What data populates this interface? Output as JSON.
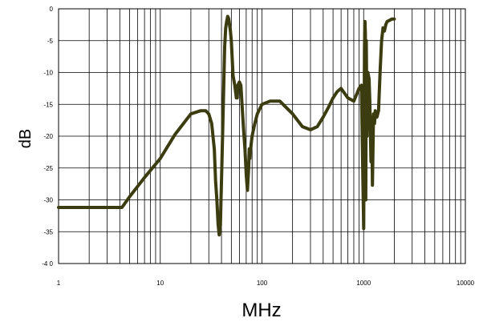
{
  "chart_data": {
    "type": "line",
    "title": "",
    "xlabel": "MHz",
    "ylabel": "dB",
    "xscale": "log",
    "xlim": [
      1,
      10000
    ],
    "ylim": [
      -40,
      0
    ],
    "grid": true,
    "legend": "none",
    "x_ticks": [
      1,
      10,
      100,
      1000,
      10000
    ],
    "x_tick_labels": [
      "1",
      "10",
      "100",
      "1000",
      "10000"
    ],
    "y_ticks": [
      0,
      -5,
      -10,
      -15,
      -20,
      -25,
      -30,
      -35,
      -40
    ],
    "y_tick_labels": [
      "0",
      "-5",
      "-10",
      "-15",
      "-20",
      "-25",
      "-30",
      "-35",
      "-4 0"
    ],
    "line_color": "#3b3c10",
    "series": [
      {
        "x": [
          1,
          4.2,
          5,
          7,
          10,
          14,
          20,
          25,
          28,
          30,
          32,
          34,
          35,
          36,
          37,
          38,
          39,
          41,
          43,
          44,
          45,
          46,
          47,
          48,
          49,
          50,
          52,
          54,
          56,
          57,
          58,
          60,
          62,
          64,
          66,
          68,
          70,
          72,
          74,
          75,
          76,
          78,
          80,
          85,
          90,
          100,
          120,
          150,
          200,
          250,
          300,
          350,
          400,
          450,
          500,
          550,
          600,
          700,
          800,
          900,
          950,
          1000,
          1020,
          1030,
          1040,
          1050,
          1060,
          1080,
          1100,
          1130,
          1150,
          1180,
          1200,
          1220,
          1250,
          1280,
          1300,
          1350,
          1400,
          1450,
          1500,
          1550,
          1600,
          1650,
          1700,
          1800,
          1900,
          2000
        ],
        "y": [
          -31.2,
          -31.2,
          -29.5,
          -26.5,
          -23.5,
          -19.7,
          -16.5,
          -16,
          -16,
          -16.5,
          -18,
          -22,
          -27,
          -30,
          -33.8,
          -35.5,
          -34,
          -20,
          -6,
          -3,
          -2,
          -1.2,
          -1.5,
          -2.5,
          -3.5,
          -5,
          -10.5,
          -12,
          -14,
          -14,
          -12,
          -11.5,
          -12,
          -15.5,
          -19,
          -22,
          -26,
          -28.5,
          -25,
          -22,
          -23.5,
          -21.5,
          -20,
          -18,
          -16.5,
          -15,
          -14.5,
          -14.5,
          -16.5,
          -18.5,
          -19,
          -18.5,
          -17,
          -15.5,
          -14,
          -13,
          -12.5,
          -14,
          -14.5,
          -12.5,
          -12,
          -34.5,
          -6,
          -2,
          -4,
          -30,
          -5,
          -20,
          -10,
          -11,
          -14.5,
          -24,
          -17,
          -27.7,
          -16.5,
          -18,
          -16,
          -17,
          -16,
          -10,
          -5,
          -3,
          -3.5,
          -2.5,
          -2,
          -1.8,
          -1.6,
          -1.6
        ]
      }
    ]
  }
}
